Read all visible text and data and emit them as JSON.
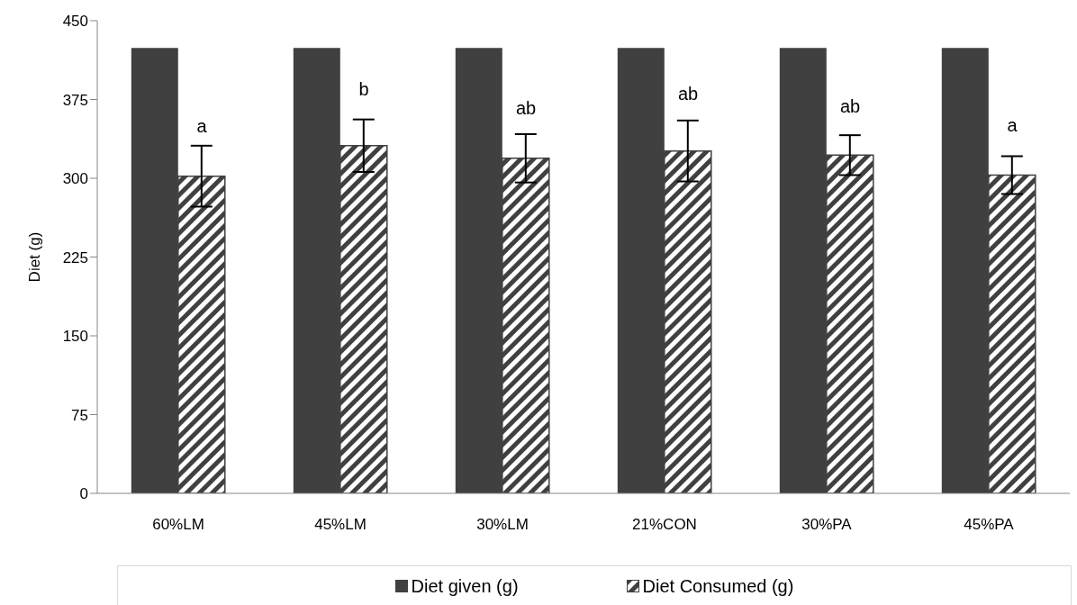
{
  "chart_data": {
    "type": "bar",
    "ylabel": "Diet (g)",
    "categories": [
      "60%LM",
      "45%LM",
      "30%LM",
      "21%CON",
      "30%PA",
      "45%PA"
    ],
    "series": [
      {
        "name": "Diet given (g)",
        "color": "#404040",
        "values": [
          424,
          424,
          424,
          424,
          424,
          424
        ]
      },
      {
        "name": "Diet Consumed (g)",
        "color": "#404040",
        "values": [
          302,
          331,
          319,
          326,
          322,
          303
        ],
        "errors": [
          29,
          25,
          23,
          29,
          19,
          18
        ]
      }
    ],
    "ylim": [
      0,
      450
    ],
    "yticks": [
      0,
      75,
      150,
      225,
      300,
      375,
      450
    ],
    "grid": false,
    "legend": "bottom",
    "annotations": [
      {
        "text": "a",
        "x": "60%LM",
        "y": 350
      },
      {
        "text": "b",
        "x": "45%LM",
        "y": 385
      },
      {
        "text": "ab",
        "x": "30%LM",
        "y": 367
      },
      {
        "text": "ab",
        "x": "21%CON",
        "y": 381
      },
      {
        "text": "ab",
        "x": "30%PA",
        "y": 369
      },
      {
        "text": "a",
        "x": "45%PA",
        "y": 351
      }
    ]
  }
}
